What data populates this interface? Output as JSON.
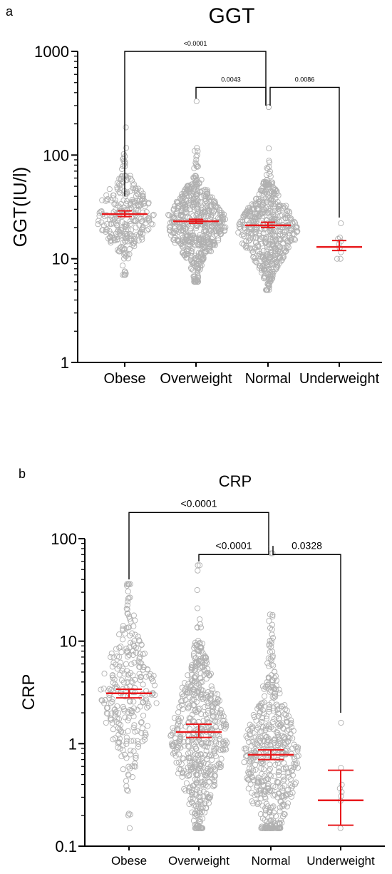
{
  "chart_data": [
    {
      "panel_label": "a",
      "type": "scatter",
      "title": "GGT",
      "ylabel": "GGT(IU/l)",
      "xlabel": "",
      "yscale": "log",
      "ylim": [
        1,
        1000
      ],
      "yticks": [
        1,
        10,
        100,
        1000
      ],
      "yticklabels": [
        "1",
        "10",
        "100",
        "1000"
      ],
      "categories": [
        "Obese",
        "Overweight",
        "Normal",
        "Underweight"
      ],
      "point_color": "#b0b0b0",
      "summary_color": "#e8191c",
      "summary": [
        {
          "category": "Obese",
          "center": 27,
          "low": 25.5,
          "high": 29
        },
        {
          "category": "Overweight",
          "center": 23,
          "low": 22,
          "high": 24
        },
        {
          "category": "Normal",
          "center": 21,
          "low": 20,
          "high": 22.5
        },
        {
          "category": "Underweight",
          "center": 13,
          "low": 12,
          "high": 15
        }
      ],
      "distribution": [
        {
          "category": "Obese",
          "n": 280,
          "median": 26,
          "spread": 0.24,
          "min": 7,
          "max": 185
        },
        {
          "category": "Overweight",
          "n": 560,
          "median": 22,
          "spread": 0.25,
          "min": 6,
          "max": 330
        },
        {
          "category": "Normal",
          "n": 520,
          "median": 19,
          "spread": 0.26,
          "min": 5,
          "max": 290
        },
        {
          "category": "Underweight",
          "n": 9,
          "median": 13,
          "spread": 0.08,
          "min": 10,
          "max": 22
        }
      ],
      "comparisons": [
        {
          "from": "Obese",
          "to": "Normal",
          "label": "<0.0001",
          "level": 1000,
          "from_end": 40,
          "to_end": 300
        },
        {
          "from": "Overweight",
          "to": "Normal",
          "label": "0.0043",
          "level": 450,
          "from_end": 350,
          "to_end": 300
        },
        {
          "from": "Normal",
          "to": "Underweight",
          "label": "0.0086",
          "level": 450,
          "from_end": 300,
          "to_end": 25
        }
      ]
    },
    {
      "panel_label": "b",
      "type": "scatter",
      "title": "CRP",
      "ylabel": "CRP",
      "xlabel": "",
      "yscale": "log",
      "ylim": [
        0.1,
        100
      ],
      "yticks": [
        0.1,
        1,
        10,
        100
      ],
      "yticklabels": [
        "0.1",
        "1",
        "10",
        "100"
      ],
      "categories": [
        "Obese",
        "Overweight",
        "Normal",
        "Underweight"
      ],
      "point_color": "#b0b0b0",
      "summary_color": "#e8191c",
      "summary": [
        {
          "category": "Obese",
          "center": 3.1,
          "low": 2.8,
          "high": 3.4
        },
        {
          "category": "Overweight",
          "center": 1.3,
          "low": 1.15,
          "high": 1.55
        },
        {
          "category": "Normal",
          "center": 0.78,
          "low": 0.7,
          "high": 0.87
        },
        {
          "category": "Underweight",
          "center": 0.28,
          "low": 0.16,
          "high": 0.55
        }
      ],
      "distribution": [
        {
          "category": "Obese",
          "n": 280,
          "median": 3.0,
          "spread": 0.45,
          "min": 0.15,
          "max": 36
        },
        {
          "category": "Overweight",
          "n": 560,
          "median": 1.2,
          "spread": 0.5,
          "min": 0.15,
          "max": 55
        },
        {
          "category": "Normal",
          "n": 520,
          "median": 0.7,
          "spread": 0.5,
          "min": 0.15,
          "max": 72
        },
        {
          "category": "Underweight",
          "n": 8,
          "median": 0.3,
          "spread": 0.15,
          "min": 0.15,
          "max": 1.6
        }
      ],
      "comparisons": [
        {
          "from": "Obese",
          "to": "Normal",
          "label": "<0.0001",
          "level": 180,
          "from_end": 40,
          "to_end": 85
        },
        {
          "from": "Overweight",
          "to": "Normal",
          "label": "<0.0001",
          "level": 70,
          "from_end": 60,
          "to_end": 85
        },
        {
          "from": "Normal",
          "to": "Underweight",
          "label": "0.0328",
          "level": 70,
          "from_end": 85,
          "to_end": 2.0
        }
      ]
    }
  ]
}
